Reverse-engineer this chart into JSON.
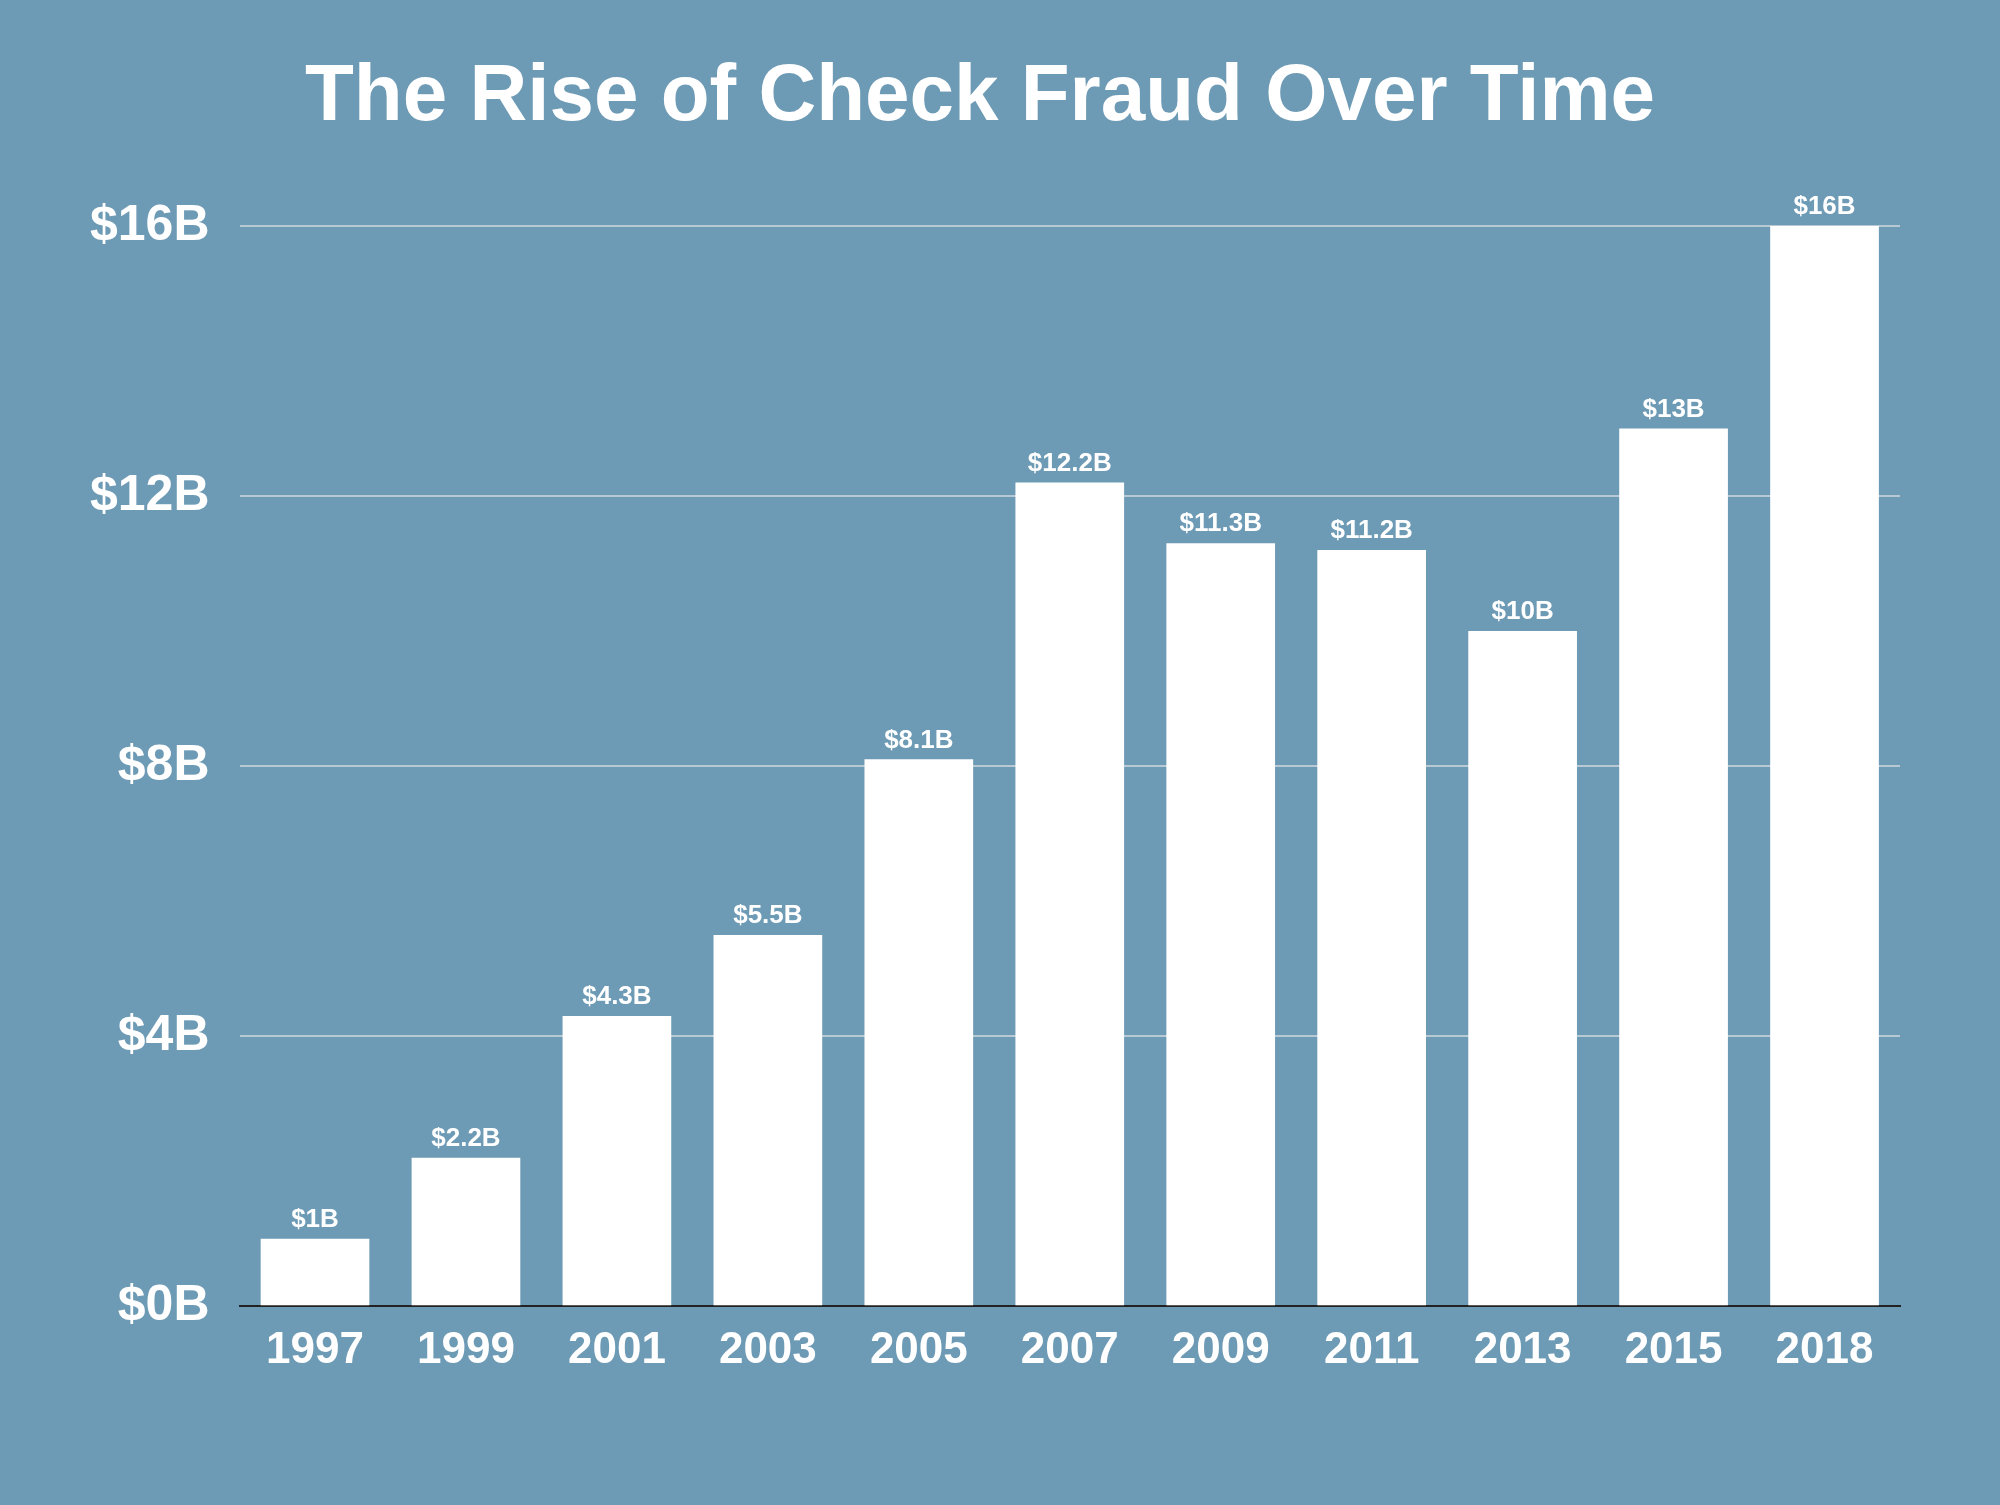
{
  "chart_data": {
    "type": "bar",
    "title": "The Rise of Check Fraud Over Time",
    "categories": [
      "1997",
      "1999",
      "2001",
      "2003",
      "2005",
      "2007",
      "2009",
      "2011",
      "2013",
      "2015",
      "2018"
    ],
    "values": [
      1,
      2.2,
      4.3,
      5.5,
      8.1,
      12.2,
      11.3,
      11.2,
      10,
      13,
      16
    ],
    "value_labels": [
      "$1B",
      "$2.2B",
      "$4.3B",
      "$5.5B",
      "$8.1B",
      "$12.2B",
      "$11.3B",
      "$11.2B",
      "$10B",
      "$13B",
      "$16B"
    ],
    "color": "#ffffff",
    "ylim": [
      0,
      16
    ],
    "yticks": [
      {
        "value": 0,
        "label": "$0B"
      },
      {
        "value": 4,
        "label": "$4B"
      },
      {
        "value": 8,
        "label": "$8B"
      },
      {
        "value": 12,
        "label": "$12B"
      },
      {
        "value": 16,
        "label": "$16B"
      }
    ],
    "grid": "y",
    "legend": false
  }
}
